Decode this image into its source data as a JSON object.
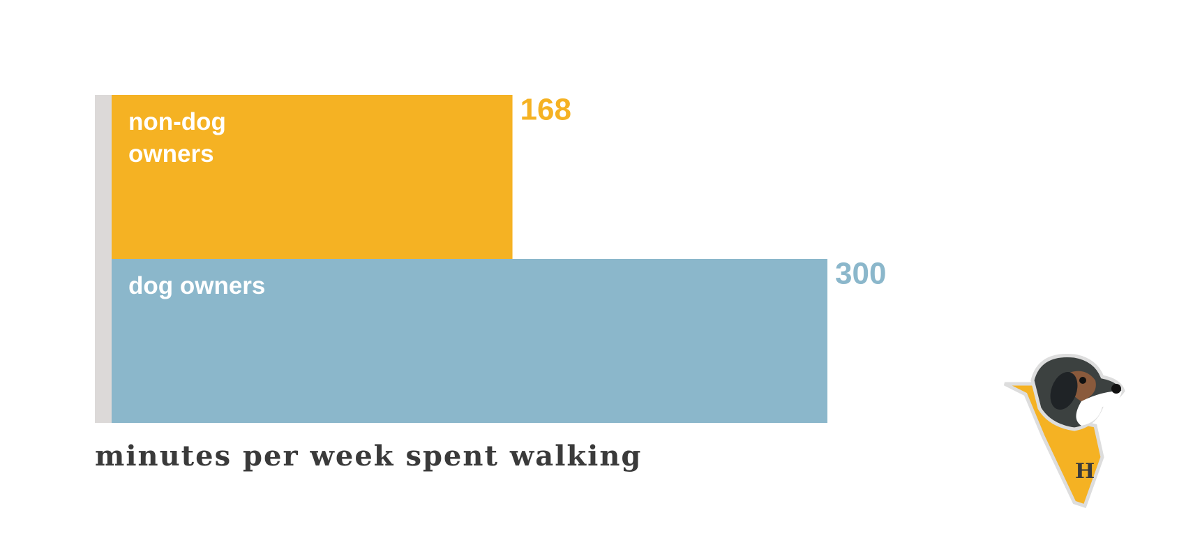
{
  "chart_data": {
    "type": "bar",
    "orientation": "horizontal",
    "categories": [
      "non-dog owners",
      "dog owners"
    ],
    "values": [
      168,
      300
    ],
    "colors": [
      "#f5b223",
      "#8bb7cb"
    ],
    "xlim": [
      0,
      300
    ],
    "xlabel": "minutes per week spent walking"
  }
}
